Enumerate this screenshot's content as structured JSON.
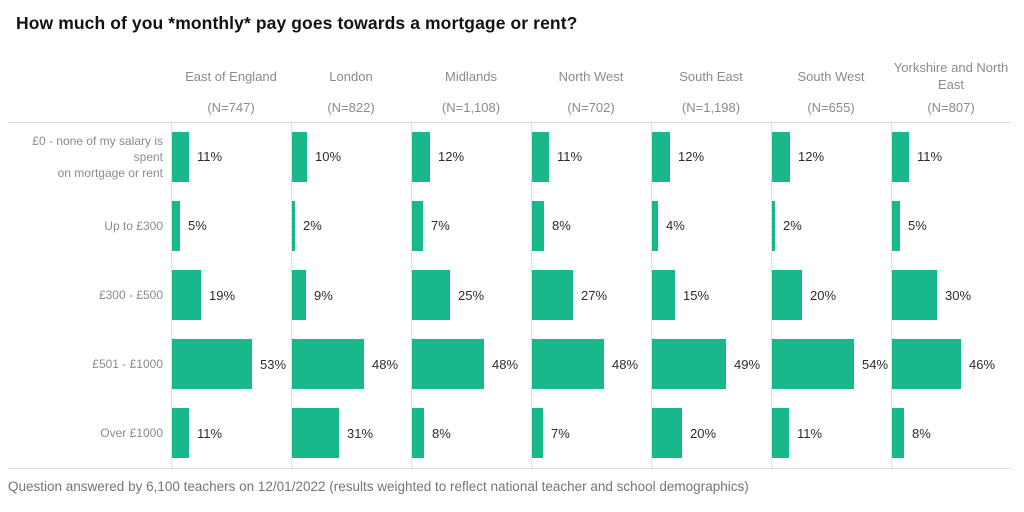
{
  "title": "How much of you *monthly* pay goes towards a mortgage or rent?",
  "footnote": "Question answered by 6,100 teachers on 12/01/2022 (results weighted to reflect national teacher and school demographics)",
  "chart_data": {
    "type": "bar",
    "orientation": "horizontal",
    "title": "How much of you *monthly* pay goes towards a mortgage or rent?",
    "value_suffix": "%",
    "legend": "none",
    "grid": "dotted-column-separators",
    "xlim": [
      0,
      60
    ],
    "categories": [
      "£0 - none of my salary is spent on mortgage or rent",
      "Up to £300",
      "£300 - £500",
      "£501 - £1000",
      "Over £1000"
    ],
    "category_label_lines": [
      [
        "£0 - none of my salary is spent",
        "on mortgage or rent"
      ],
      [
        "Up to £300"
      ],
      [
        "£300 - £500"
      ],
      [
        "£501 - £1000"
      ],
      [
        "Over £1000"
      ]
    ],
    "series": [
      {
        "name": "East of England",
        "sample": "(N=747)",
        "values": [
          11,
          5,
          19,
          53,
          11
        ]
      },
      {
        "name": "London",
        "sample": "(N=822)",
        "values": [
          10,
          2,
          9,
          48,
          31
        ]
      },
      {
        "name": "Midlands",
        "sample": "(N=1,108)",
        "values": [
          12,
          7,
          25,
          48,
          8
        ]
      },
      {
        "name": "North West",
        "sample": "(N=702)",
        "values": [
          11,
          8,
          27,
          48,
          7
        ]
      },
      {
        "name": "South East",
        "sample": "(N=1,198)",
        "values": [
          12,
          4,
          15,
          49,
          20
        ]
      },
      {
        "name": "South West",
        "sample": "(N=655)",
        "values": [
          12,
          2,
          20,
          54,
          11
        ]
      },
      {
        "name": "Yorkshire and North East",
        "sample": "(N=807)",
        "values": [
          11,
          5,
          30,
          46,
          8
        ]
      }
    ],
    "footnote": "Question answered by 6,100 teachers on 12/01/2022 (results weighted to reflect national teacher and school demographics)",
    "colors": {
      "bar": "#18b78c",
      "axis_text": "#8b8b8b",
      "value_text": "#2d2d2d",
      "gridline": "#c8c8c8",
      "border": "#dcdcdc",
      "title": "#121212",
      "footnote": "#757575"
    }
  }
}
